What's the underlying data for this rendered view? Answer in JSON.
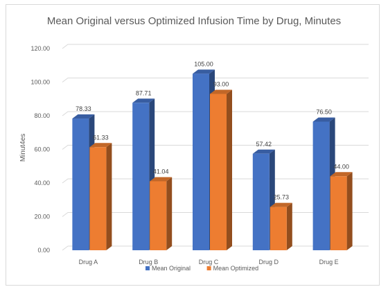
{
  "chart_data": {
    "type": "bar",
    "title": "Mean Original versus Optimized Infusion Time by Drug, Minutes",
    "xlabel": "",
    "ylabel": "Minut4es",
    "categories": [
      "Drug A",
      "Drug B",
      "Drug C",
      "Drug D",
      "Drug E"
    ],
    "series": [
      {
        "name": "Mean Original",
        "values": [
          78.33,
          87.71,
          105.0,
          57.42,
          76.5
        ],
        "labels": [
          "78.33",
          "87.71",
          "105.00",
          "57.42",
          "76.50"
        ],
        "color": "#4472C4"
      },
      {
        "name": "Mean Optimized",
        "values": [
          61.33,
          41.04,
          93.0,
          25.73,
          44.0
        ],
        "labels": [
          "61.33",
          "41.04",
          "93.00",
          "25.73",
          "44.00"
        ],
        "color": "#ED7D31"
      }
    ],
    "ylim": [
      0,
      120
    ],
    "yticks": [
      "0.00",
      "20.00",
      "40.00",
      "60.00",
      "80.00",
      "100.00",
      "120.00"
    ],
    "grid": true,
    "legend": "bottom",
    "style": "3d-clustered-column"
  }
}
